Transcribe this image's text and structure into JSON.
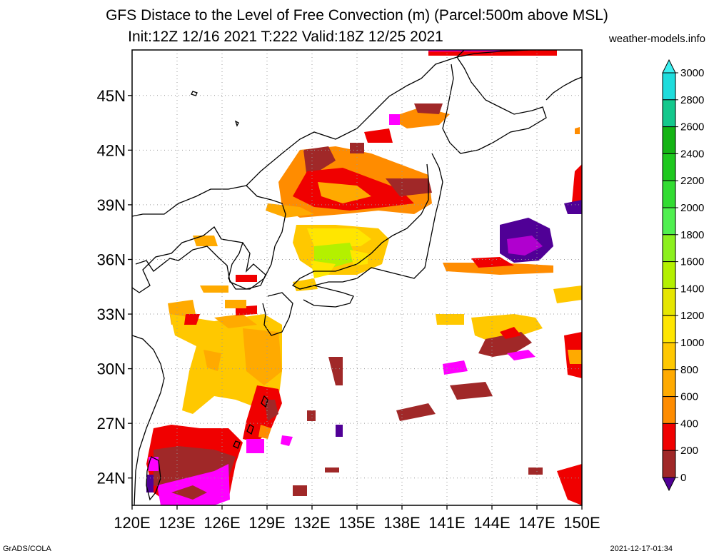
{
  "title_line1": "GFS Distace to the Level of Free Convection (m) (Parcel:500m above MSL)",
  "title_line2": "Init:12Z 12/16 2021 T:222 Valid:18Z 12/25 2021",
  "site": "weather-models.info",
  "footer_left": "GrADS/COLA",
  "footer_right": "2021-12-17-01:34",
  "lat_labels": [
    "45N",
    "42N",
    "39N",
    "36N",
    "33N",
    "30N",
    "27N",
    "24N"
  ],
  "lat_values": [
    45,
    42,
    39,
    36,
    33,
    30,
    27,
    24
  ],
  "lon_labels": [
    "120E",
    "123E",
    "126E",
    "129E",
    "132E",
    "135E",
    "138E",
    "141E",
    "144E",
    "147E",
    "150E"
  ],
  "lon_values": [
    120,
    123,
    126,
    129,
    132,
    135,
    138,
    141,
    144,
    147,
    150
  ],
  "extent": {
    "lon_min": 120,
    "lon_max": 150,
    "lat_min": 22.5,
    "lat_max": 47.5
  },
  "colorbar": {
    "levels": [
      "3000",
      "2800",
      "2600",
      "2400",
      "2200",
      "2000",
      "1800",
      "1600",
      "1400",
      "1200",
      "1000",
      "800",
      "600",
      "400",
      "200",
      "0"
    ],
    "colors": [
      "#1edcdc",
      "#14c88c",
      "#14b414",
      "#1ec81e",
      "#32dc32",
      "#50f050",
      "#8cf01e",
      "#b4f000",
      "#e6e600",
      "#ffe600",
      "#ffc800",
      "#ffaa00",
      "#ff8c00",
      "#f00000",
      "#a02828",
      "#ff00ff",
      "#500096"
    ],
    "top_color": "#3cf0f0",
    "bottom_color": "#500096"
  }
}
